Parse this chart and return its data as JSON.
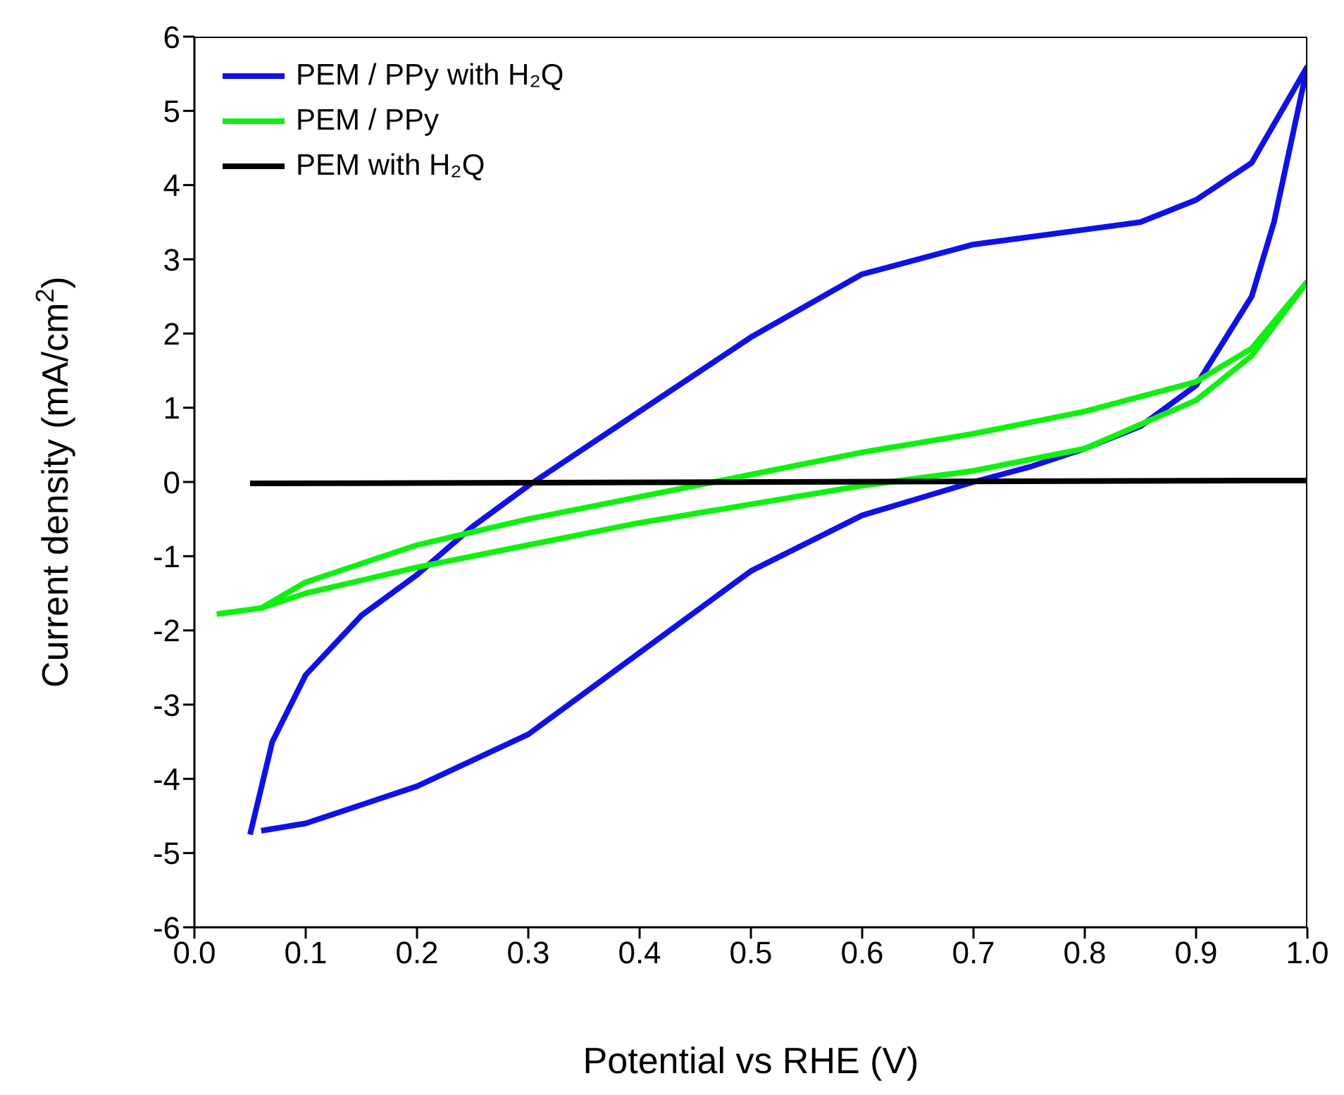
{
  "chart_data": {
    "type": "line",
    "xlabel": "Potential vs RHE (V)",
    "ylabel": "Current density (mA/cm$^{2}$)",
    "xlim": [
      0,
      1
    ],
    "xticks": [
      {
        "value": 0,
        "label": "0.0"
      },
      0.1,
      0.2,
      0.3,
      0.4,
      0.5,
      0.6,
      0.7,
      0.8,
      0.9,
      {
        "value": 1,
        "label": "1.0"
      }
    ],
    "ylim": [
      -6,
      6
    ],
    "yticks": [
      -6,
      -5,
      -4,
      -3,
      -2,
      -1,
      0,
      1,
      2,
      3,
      4,
      5,
      6
    ],
    "grid": false,
    "legend": "top left",
    "marker": "none",
    "line_style": "solid",
    "series": [
      {
        "name": "PEM / PPy with H₂Q",
        "color": "#1010e8",
        "x": [
          0.05,
          0.07,
          0.1,
          0.15,
          0.2,
          0.25,
          0.3,
          0.4,
          0.5,
          0.6,
          0.7,
          0.8,
          0.85,
          0.9,
          0.95,
          1.0
        ],
        "values": [
          -4.75,
          -3.5,
          -2.6,
          -1.8,
          -1.25,
          -0.6,
          -0.05,
          0.95,
          1.95,
          2.8,
          3.2,
          3.4,
          3.5,
          3.8,
          4.3,
          5.6
        ]
      },
      {
        "color": "#1010e8",
        "x": [
          0.06,
          0.1,
          0.2,
          0.3,
          0.4,
          0.5,
          0.6,
          0.7,
          0.75,
          0.8,
          0.85,
          0.9,
          0.95,
          0.97,
          1.0
        ],
        "values": [
          -4.7,
          -4.6,
          -4.1,
          -3.4,
          -2.3,
          -1.2,
          -0.45,
          0,
          0.2,
          0.45,
          0.75,
          1.3,
          2.5,
          3.5,
          5.6
        ]
      },
      {
        "name": "PEM / PPy",
        "color": "#10f010",
        "x": [
          0.02,
          0.06,
          0.1,
          0.2,
          0.3,
          0.4,
          0.5,
          0.6,
          0.7,
          0.8,
          0.9,
          0.95,
          1.0
        ],
        "values": [
          -1.78,
          -1.7,
          -1.35,
          -0.85,
          -0.5,
          -0.2,
          0.1,
          0.4,
          0.65,
          0.95,
          1.35,
          1.8,
          2.7
        ]
      },
      {
        "color": "#10f010",
        "x": [
          0.06,
          0.1,
          0.2,
          0.3,
          0.4,
          0.5,
          0.6,
          0.7,
          0.8,
          0.9,
          0.95,
          1.0
        ],
        "values": [
          -1.7,
          -1.5,
          -1.15,
          -0.85,
          -0.55,
          -0.3,
          -0.05,
          0.15,
          0.45,
          1.1,
          1.7,
          2.7
        ]
      },
      {
        "name": "PEM  with H₂Q",
        "color": "#000000",
        "x": [
          0.05,
          1.0
        ],
        "values": [
          -0.02,
          0.02
        ]
      }
    ]
  }
}
